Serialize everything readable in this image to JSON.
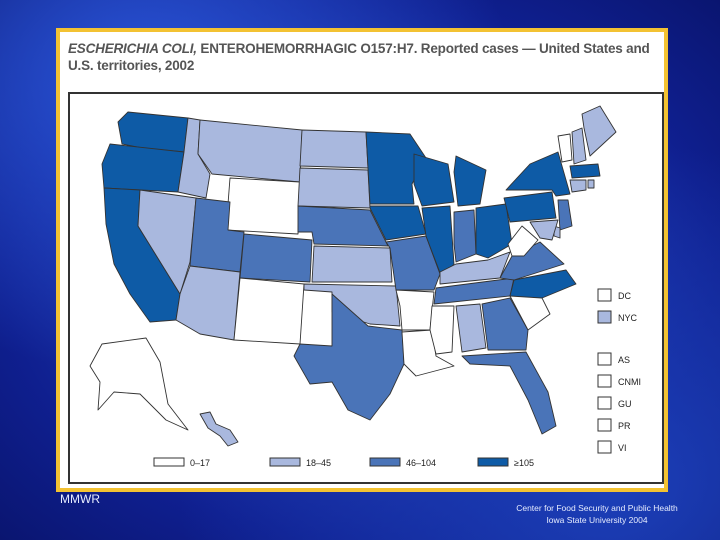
{
  "title": {
    "italic": "ESCHERICHIA COLI,",
    "rest": " ENTEROHEMORRHAGIC O157:H7. Reported cases — United States and U.S. territories, 2002"
  },
  "colors": {
    "c0": "#ffffff",
    "c1": "#a9b8de",
    "c2": "#4a74b8",
    "c3": "#0e5ba6",
    "stroke": "#333333"
  },
  "legend_bins": [
    {
      "label": "0–17",
      "color_key": "c0"
    },
    {
      "label": "18–45",
      "color_key": "c1"
    },
    {
      "label": "46–104",
      "color_key": "c2"
    },
    {
      "label": "≥105",
      "color_key": "c3"
    }
  ],
  "territories": [
    {
      "label": "DC",
      "color_key": "c0"
    },
    {
      "label": "NYC",
      "color_key": "c1"
    },
    {
      "label": "AS",
      "color_key": "c0"
    },
    {
      "label": "CNMI",
      "color_key": "c0"
    },
    {
      "label": "GU",
      "color_key": "c0"
    },
    {
      "label": "PR",
      "color_key": "c0"
    },
    {
      "label": "VI",
      "color_key": "c0"
    }
  ],
  "states": {
    "WA": "c3",
    "OR": "c3",
    "CA": "c3",
    "ID": "c1",
    "NV": "c1",
    "MT": "c1",
    "WY": "c0",
    "UT": "c2",
    "AZ": "c1",
    "NM": "c0",
    "CO": "c2",
    "ND": "c1",
    "SD": "c1",
    "NE": "c2",
    "KS": "c1",
    "OK": "c1",
    "TX": "c2",
    "MN": "c3",
    "IA": "c3",
    "MO": "c2",
    "AR": "c0",
    "LA": "c0",
    "WI": "c3",
    "IL": "c3",
    "MI": "c3",
    "IN": "c2",
    "OH": "c3",
    "KY": "c1",
    "TN": "c2",
    "MS": "c0",
    "AL": "c1",
    "GA": "c2",
    "FL": "c2",
    "SC": "c0",
    "NC": "c3",
    "VA": "c2",
    "WV": "c0",
    "PA": "c3",
    "NY": "c3",
    "VT": "c0",
    "NH": "c1",
    "ME": "c1",
    "MA": "c3",
    "CT": "c1",
    "RI": "c1",
    "NJ": "c2",
    "DE": "c1",
    "MD": "c1",
    "AK": "c0",
    "HI": "c1"
  },
  "footer": {
    "left": "MMWR",
    "right_line1": "Center for Food Security and Public Health",
    "right_line2": "Iowa State University 2004"
  }
}
